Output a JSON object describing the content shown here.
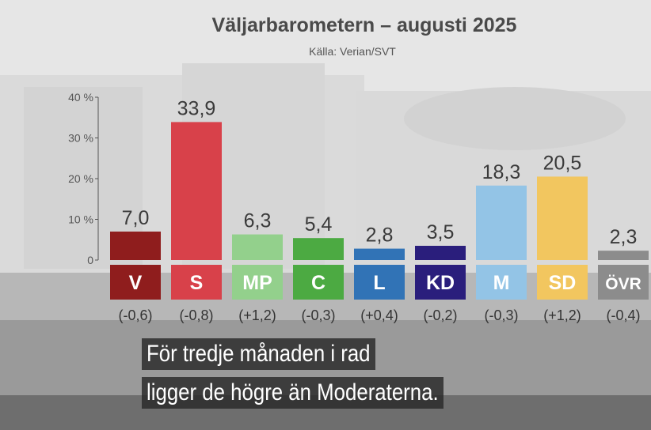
{
  "chart_data": {
    "type": "bar",
    "title": "Väljarbarometern – augusti 2025",
    "subtitle": "Källa: Verian/SVT",
    "categories": [
      "V",
      "S",
      "MP",
      "C",
      "L",
      "KD",
      "M",
      "SD",
      "ÖVR"
    ],
    "values": [
      7.0,
      33.9,
      6.3,
      5.4,
      2.8,
      3.5,
      18.3,
      20.5,
      2.3
    ],
    "value_labels": [
      "7,0",
      "33,9",
      "6,3",
      "5,4",
      "2,8",
      "3,5",
      "18,3",
      "20,5",
      "2,3"
    ],
    "changes": [
      "(-0,6)",
      "(-0,8)",
      "(+1,2)",
      "(-0,3)",
      "(+0,4)",
      "(-0,2)",
      "(-0,3)",
      "(+1,2)",
      "(-0,4)"
    ],
    "colors": [
      "#8f1d1d",
      "#d8414a",
      "#93d08c",
      "#4caa42",
      "#3173b6",
      "#2a1e7c",
      "#93c4e6",
      "#f2c65f",
      "#8c8c8c"
    ],
    "label_colors": [
      "#ffffff",
      "#ffffff",
      "#ffffff",
      "#ffffff",
      "#ffffff",
      "#ffffff",
      "#ffffff",
      "#ffffff",
      "#ffffff"
    ],
    "yticks": [
      0,
      10,
      20,
      30,
      40
    ],
    "ytick_labels": [
      "0",
      "10 %",
      "20 %",
      "30 %",
      "40 %"
    ],
    "ylim": [
      0,
      40
    ],
    "xlabel": "",
    "ylabel": "",
    "grid": false,
    "legend": "none"
  },
  "caption": {
    "line1": "För tredje månaden i rad",
    "line2": "ligger de högre än Moderaterna."
  }
}
